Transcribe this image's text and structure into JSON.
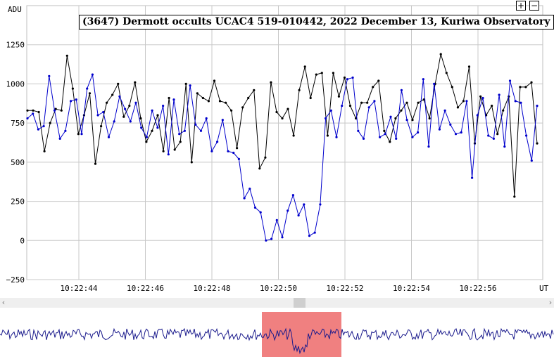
{
  "chart_data": {
    "type": "line",
    "title": "(3647) Dermott occults UCAC4 519-010442, 2022 December 13, Kuriwa Observatory",
    "ylabel": "ADU",
    "xlabel": "UT",
    "ylim": [
      -250,
      1500
    ],
    "yticks": [
      -250,
      0,
      250,
      500,
      750,
      1000,
      1250
    ],
    "xticks": [
      "10:22:44",
      "10:22:46",
      "10:22:48",
      "10:22:50",
      "10:22:52",
      "10:22:54",
      "10:22:56"
    ],
    "grid": true,
    "series": [
      {
        "color": "#000000",
        "values": [
          830,
          830,
          820,
          570,
          750,
          840,
          830,
          1180,
          970,
          680,
          800,
          940,
          490,
          730,
          880,
          930,
          1000,
          790,
          860,
          1010,
          780,
          630,
          700,
          800,
          570,
          910,
          580,
          630,
          1000,
          500,
          940,
          910,
          890,
          1020,
          890,
          880,
          830,
          590,
          850,
          910,
          960,
          460,
          530,
          1010,
          820,
          780,
          840,
          670,
          960,
          1110,
          910,
          1060,
          1070,
          670,
          1070,
          920,
          1040,
          860,
          780,
          880,
          880,
          980,
          1020,
          700,
          630,
          780,
          830,
          880,
          770,
          880,
          900,
          780,
          1000,
          1190,
          1070,
          980,
          850,
          890,
          1110,
          620,
          920,
          800,
          860,
          680,
          830,
          920,
          280,
          980,
          980,
          1010,
          620
        ]
      },
      {
        "color": "#0000cc",
        "values": [
          780,
          810,
          710,
          730,
          1050,
          830,
          650,
          700,
          890,
          900,
          680,
          970,
          1060,
          800,
          820,
          660,
          760,
          920,
          840,
          760,
          880,
          720,
          660,
          830,
          720,
          860,
          550,
          900,
          680,
          700,
          990,
          740,
          700,
          780,
          570,
          630,
          770,
          570,
          560,
          520,
          270,
          330,
          210,
          180,
          0,
          10,
          130,
          20,
          190,
          290,
          160,
          230,
          30,
          50,
          230,
          780,
          830,
          660,
          860,
          1030,
          1040,
          700,
          650,
          850,
          890,
          660,
          680,
          790,
          650,
          960,
          770,
          660,
          690,
          1030,
          600,
          1000,
          710,
          830,
          740,
          680,
          690,
          890,
          400,
          800,
          910,
          670,
          650,
          930,
          600,
          1020,
          890,
          880,
          670,
          510,
          860
        ]
      }
    ]
  }
}
